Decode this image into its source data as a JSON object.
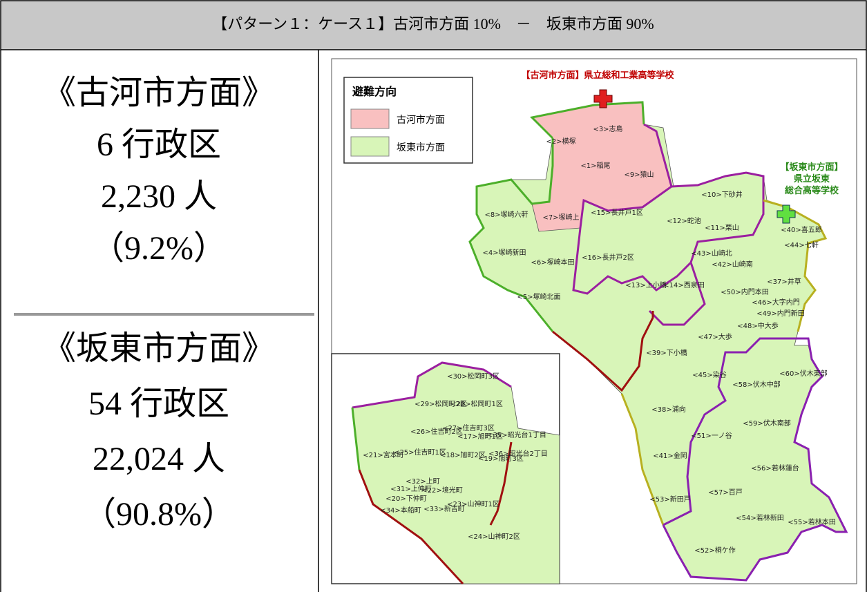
{
  "header": {
    "title": "【パターン１：ケース１】古河市方面 10%　－　坂東市方面 90%"
  },
  "left": {
    "koga": {
      "heading": "《古河市方面》",
      "districts": "6 行政区",
      "people": "2,230 人",
      "percent": "（9.2%）"
    },
    "bando": {
      "heading": "《坂東市方面》",
      "districts": "54 行政区",
      "people": "22,024 人",
      "percent": "（90.8%）"
    }
  },
  "map": {
    "koga_school": "【古河市方面】県立総和工業高等学校",
    "bando_school": [
      "【坂東市方面】",
      "県立坂東",
      "総合高等学校"
    ],
    "legend": {
      "title": "避難方向",
      "items": [
        "古河市方面",
        "坂東市方面"
      ]
    },
    "labels": [
      "<3>志島",
      "<2>横塚",
      "<1>稲尾",
      "<9>猿山",
      "<10>下砂井",
      "<15>長井戸1区",
      "<8>塚崎六軒",
      "<7>塚崎上",
      "<12>蛇池",
      "<11>栗山",
      "<40>喜五郎",
      "<44>七軒",
      "<4>塚崎新田",
      "<16>長井戸2区",
      "<6>塚崎本田",
      "<43>山崎北",
      "<42>山崎南",
      "<37>井草",
      "<13>上小橋",
      "<14>西泉田",
      "<50>内門本田",
      "<5>塚崎北面",
      "<46>大字内門",
      "<49>内門新田",
      "<48>中大歩",
      "<47>大歩",
      "<39>下小橋",
      "<60>伏木東部",
      "<45>染谷",
      "<58>伏木中部",
      "<38>浦向",
      "<59>伏木南部",
      "<51>一ノ谷",
      "<41>金岡",
      "<56>若林蓮台",
      "<57>百戸",
      "<53>新田戸",
      "<54>若林新田",
      "<55>若林本田",
      "<52>桐ケ作"
    ],
    "inset_labels": [
      "<30>松岡町3区",
      "<29>松岡町2区",
      "<28>松岡町1区",
      "<27>住吉町3区",
      "<26>住吉町2区",
      "<17>旭町1区",
      "<35>昭光台1丁目",
      "<21>宮本町",
      "<25>住吉町1区",
      "<18>旭町2区",
      "<19>旭町3区",
      "<36>昭光台2丁目",
      "<32>上町",
      "<31>上仲町",
      "<20>下仲町",
      "<22>境光町",
      "<34>本船町",
      "<33>新吉町",
      "<23>山神町1区",
      "<24>山神町2区"
    ]
  }
}
